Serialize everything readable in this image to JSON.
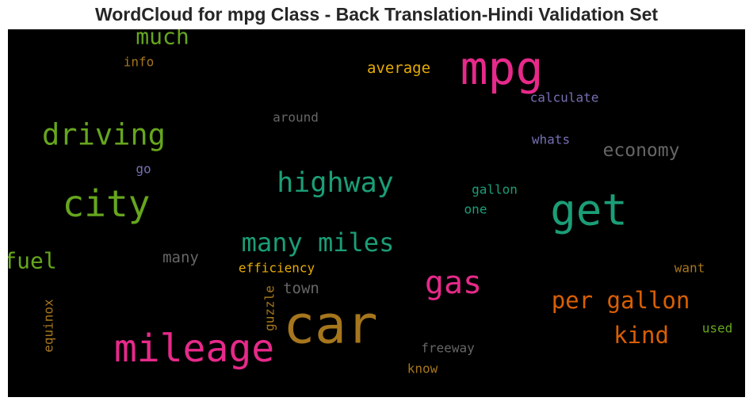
{
  "title": "WordCloud for mpg Class - Back Translation-Hindi Validation Set",
  "chart_data": {
    "type": "wordcloud",
    "title": "WordCloud for mpg Class - Back Translation-Hindi Validation Set",
    "background": "#000000",
    "words": [
      {
        "text": "mpg",
        "color": "#e7298a"
      },
      {
        "text": "car",
        "color": "#a6761d"
      },
      {
        "text": "get",
        "color": "#1b9e77"
      },
      {
        "text": "mileage",
        "color": "#e7298a"
      },
      {
        "text": "city",
        "color": "#66a61e"
      },
      {
        "text": "driving",
        "color": "#66a61e"
      },
      {
        "text": "highway",
        "color": "#1b9e77"
      },
      {
        "text": "many miles",
        "color": "#1b9e77"
      },
      {
        "text": "gas",
        "color": "#e7298a"
      },
      {
        "text": "per gallon",
        "color": "#d95f02"
      },
      {
        "text": "kind",
        "color": "#d95f02"
      },
      {
        "text": "much",
        "color": "#66a61e"
      },
      {
        "text": "fuel",
        "color": "#66a61e"
      },
      {
        "text": "economy",
        "color": "#666666"
      },
      {
        "text": "average",
        "color": "#e6ab02"
      },
      {
        "text": "town",
        "color": "#666666"
      },
      {
        "text": "many",
        "color": "#666666"
      },
      {
        "text": "efficiency",
        "color": "#e6ab02"
      },
      {
        "text": "calculate",
        "color": "#7570b3"
      },
      {
        "text": "around",
        "color": "#666666"
      },
      {
        "text": "whats",
        "color": "#7570b3"
      },
      {
        "text": "gallon",
        "color": "#1b9e77"
      },
      {
        "text": "one",
        "color": "#1b9e77"
      },
      {
        "text": "freeway",
        "color": "#666666"
      },
      {
        "text": "info",
        "color": "#a6761d"
      },
      {
        "text": "go",
        "color": "#7570b3"
      },
      {
        "text": "want",
        "color": "#a6761d"
      },
      {
        "text": "used",
        "color": "#66a61e"
      },
      {
        "text": "know",
        "color": "#a6761d"
      },
      {
        "text": "guzzle",
        "color": "#a6761d"
      },
      {
        "text": "equinox",
        "color": "#a6761d"
      }
    ]
  }
}
